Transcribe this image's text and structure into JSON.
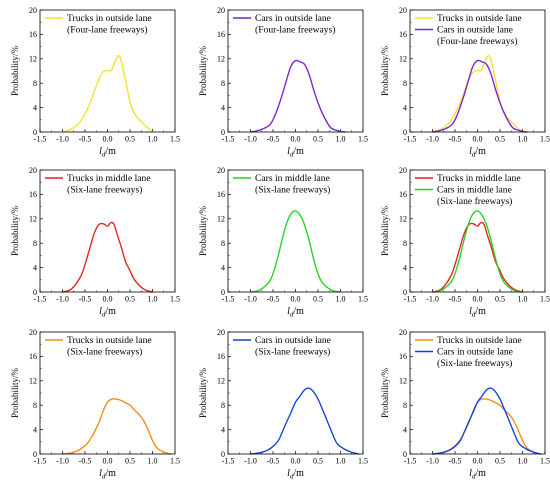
{
  "chart_data": [
    {
      "type": "line",
      "title": "",
      "xlabel_main": "l",
      "xlabel_sub": "d",
      "xlabel_unit": "/m",
      "ylabel": "Probability/%",
      "xlim": [
        -1.5,
        1.5
      ],
      "ylim": [
        0,
        20
      ],
      "xticks": [
        "-1.5",
        "-1.0",
        "-0.5",
        "0.0",
        "0.5",
        "1.0",
        "1.5"
      ],
      "yticks": [
        "0",
        "4",
        "8",
        "12",
        "16",
        "20"
      ],
      "legend": "top-left",
      "series": [
        {
          "name": "Trucks in outside lane",
          "color": "#f5e12c",
          "x": [
            -1.0,
            -0.8,
            -0.6,
            -0.4,
            -0.3,
            -0.2,
            -0.1,
            0.0,
            0.05,
            0.1,
            0.2,
            0.25,
            0.3,
            0.4,
            0.5,
            0.6,
            0.8,
            1.0
          ],
          "y": [
            0,
            0.5,
            1.8,
            4.5,
            6.5,
            8.5,
            9.8,
            10.1,
            10.0,
            10.3,
            12.1,
            12.5,
            11.8,
            8.5,
            5.0,
            3.0,
            1.3,
            0
          ]
        }
      ],
      "legend_lines": [
        "Trucks in outside lane",
        "(Four-lane freeways)"
      ]
    },
    {
      "type": "line",
      "title": "",
      "xlabel_main": "l",
      "xlabel_sub": "d",
      "xlabel_unit": "/m",
      "ylabel": "Probability/%",
      "xlim": [
        -1.5,
        1.5
      ],
      "ylim": [
        0,
        20
      ],
      "xticks": [
        "-1.5",
        "-1.0",
        "-0.5",
        "0.0",
        "0.5",
        "1.0",
        "1.5"
      ],
      "yticks": [
        "0",
        "4",
        "8",
        "12",
        "16",
        "20"
      ],
      "legend": "top-left",
      "series": [
        {
          "name": "Cars in outside lane",
          "color": "#7a1fd6",
          "x": [
            -1.0,
            -0.8,
            -0.6,
            -0.5,
            -0.4,
            -0.3,
            -0.2,
            -0.1,
            0.0,
            0.1,
            0.2,
            0.3,
            0.4,
            0.5,
            0.6,
            0.7,
            0.8,
            1.0,
            1.1
          ],
          "y": [
            0,
            0.3,
            1.0,
            2.0,
            3.8,
            6.0,
            8.5,
            10.8,
            11.7,
            11.5,
            11.1,
            9.5,
            7.0,
            4.8,
            3.0,
            1.6,
            0.6,
            0.1,
            0
          ]
        }
      ],
      "legend_lines": [
        "Cars in outside lane",
        "(Four-lane freeways)"
      ]
    },
    {
      "type": "line",
      "title": "",
      "xlabel_main": "l",
      "xlabel_sub": "d",
      "xlabel_unit": "/m",
      "ylabel": "Probability/%",
      "xlim": [
        -1.5,
        1.5
      ],
      "ylim": [
        0,
        20
      ],
      "xticks": [
        "-1.5",
        "-1.0",
        "-0.5",
        "0.0",
        "0.5",
        "1.0",
        "1.5"
      ],
      "yticks": [
        "0",
        "4",
        "8",
        "12",
        "16",
        "20"
      ],
      "legend": "top-left",
      "series": [
        {
          "name": "Trucks in outside lane",
          "color": "#f5e12c",
          "x": [
            -1.0,
            -0.8,
            -0.6,
            -0.4,
            -0.3,
            -0.2,
            -0.1,
            0.0,
            0.05,
            0.1,
            0.2,
            0.25,
            0.3,
            0.4,
            0.5,
            0.6,
            0.8,
            1.0
          ],
          "y": [
            0,
            0.5,
            1.8,
            4.5,
            6.5,
            8.5,
            9.8,
            10.1,
            10.0,
            10.3,
            12.1,
            12.5,
            11.8,
            8.5,
            5.0,
            3.0,
            1.3,
            0
          ]
        },
        {
          "name": "Cars in outside lane",
          "color": "#7a1fd6",
          "x": [
            -1.0,
            -0.8,
            -0.6,
            -0.5,
            -0.4,
            -0.3,
            -0.2,
            -0.1,
            0.0,
            0.1,
            0.2,
            0.3,
            0.4,
            0.5,
            0.6,
            0.7,
            0.8,
            1.0,
            1.1
          ],
          "y": [
            0,
            0.3,
            1.0,
            2.0,
            3.8,
            6.0,
            8.5,
            10.8,
            11.7,
            11.5,
            11.1,
            9.5,
            7.0,
            4.8,
            3.0,
            1.6,
            0.6,
            0.1,
            0
          ]
        }
      ],
      "legend_lines": [
        "Trucks in outside lane",
        "Cars in outside lane",
        "(Four-lane freeways)"
      ]
    },
    {
      "type": "line",
      "title": "",
      "xlabel_main": "l",
      "xlabel_sub": "d",
      "xlabel_unit": "/m",
      "ylabel": "Probability/%",
      "xlim": [
        -1.5,
        1.5
      ],
      "ylim": [
        0,
        20
      ],
      "xticks": [
        "-1.5",
        "-1.0",
        "-0.5",
        "0.0",
        "0.5",
        "1.0",
        "1.5"
      ],
      "yticks": [
        "0",
        "4",
        "8",
        "12",
        "16",
        "20"
      ],
      "legend": "top-left",
      "series": [
        {
          "name": "Trucks in middle lane",
          "color": "#e8201c",
          "x": [
            -1.0,
            -0.8,
            -0.6,
            -0.5,
            -0.4,
            -0.3,
            -0.2,
            -0.1,
            0.0,
            0.05,
            0.1,
            0.15,
            0.2,
            0.3,
            0.4,
            0.5,
            0.6,
            0.8,
            1.0
          ],
          "y": [
            0,
            0.5,
            2.5,
            4.5,
            7.0,
            9.5,
            11.0,
            11.2,
            10.8,
            11.2,
            11.4,
            11.0,
            9.8,
            7.5,
            5.0,
            3.5,
            2.0,
            0.5,
            0
          ]
        }
      ],
      "legend_lines": [
        "Trucks in middle lane",
        "(Six-lane freeways)"
      ]
    },
    {
      "type": "line",
      "title": "",
      "xlabel_main": "l",
      "xlabel_sub": "d",
      "xlabel_unit": "/m",
      "ylabel": "Probability/%",
      "xlim": [
        -1.5,
        1.5
      ],
      "ylim": [
        0,
        20
      ],
      "xticks": [
        "-1.5",
        "-1.0",
        "-0.5",
        "0.0",
        "0.5",
        "1.0",
        "1.5"
      ],
      "yticks": [
        "0",
        "4",
        "8",
        "12",
        "16",
        "20"
      ],
      "legend": "top-left",
      "series": [
        {
          "name": "Cars in middle lane",
          "color": "#1ed61e",
          "x": [
            -1.0,
            -0.8,
            -0.6,
            -0.5,
            -0.4,
            -0.3,
            -0.2,
            -0.1,
            0.0,
            0.1,
            0.2,
            0.3,
            0.4,
            0.5,
            0.6,
            0.8,
            1.0
          ],
          "y": [
            0,
            0.3,
            1.5,
            3.0,
            5.5,
            8.5,
            11.2,
            12.8,
            13.3,
            12.6,
            11.0,
            8.5,
            5.5,
            3.0,
            1.5,
            0.3,
            0
          ]
        }
      ],
      "legend_lines": [
        "Cars in middle lane",
        "(Six-lane freeways)"
      ]
    },
    {
      "type": "line",
      "title": "",
      "xlabel_main": "l",
      "xlabel_sub": "d",
      "xlabel_unit": "/m",
      "ylabel": "Probability/%",
      "xlim": [
        -1.5,
        1.5
      ],
      "ylim": [
        0,
        20
      ],
      "xticks": [
        "-1.5",
        "-1.0",
        "-0.5",
        "0.0",
        "0.5",
        "1.0",
        "1.5"
      ],
      "yticks": [
        "0",
        "4",
        "8",
        "12",
        "16",
        "20"
      ],
      "legend": "top-left",
      "series": [
        {
          "name": "Trucks in middle lane",
          "color": "#e8201c",
          "x": [
            -1.0,
            -0.8,
            -0.6,
            -0.5,
            -0.4,
            -0.3,
            -0.2,
            -0.1,
            0.0,
            0.05,
            0.1,
            0.15,
            0.2,
            0.3,
            0.4,
            0.5,
            0.6,
            0.8,
            1.0
          ],
          "y": [
            0,
            0.5,
            2.5,
            4.5,
            7.0,
            9.5,
            11.0,
            11.2,
            10.8,
            11.2,
            11.4,
            11.0,
            9.8,
            7.5,
            5.0,
            3.5,
            2.0,
            0.5,
            0
          ]
        },
        {
          "name": "Cars in middle lane",
          "color": "#1ed61e",
          "x": [
            -1.0,
            -0.8,
            -0.6,
            -0.5,
            -0.4,
            -0.3,
            -0.2,
            -0.1,
            0.0,
            0.1,
            0.2,
            0.3,
            0.4,
            0.5,
            0.6,
            0.8,
            1.0
          ],
          "y": [
            0,
            0.3,
            1.5,
            3.0,
            5.5,
            8.5,
            11.2,
            12.8,
            13.3,
            12.6,
            11.0,
            8.5,
            5.5,
            3.0,
            1.5,
            0.3,
            0
          ]
        }
      ],
      "legend_lines": [
        "Trucks in middle lane",
        "Cars in middle lane",
        "(Six-lane freeways)"
      ]
    },
    {
      "type": "line",
      "title": "",
      "xlabel_main": "l",
      "xlabel_sub": "d",
      "xlabel_unit": "/m",
      "ylabel": "Probability/%",
      "xlim": [
        -1.5,
        1.5
      ],
      "ylim": [
        0,
        20
      ],
      "xticks": [
        "-1.5",
        "-1.0",
        "-0.5",
        "0.0",
        "0.5",
        "1.0",
        "1.5"
      ],
      "yticks": [
        "0",
        "4",
        "8",
        "12",
        "16",
        "20"
      ],
      "legend": "top-left",
      "series": [
        {
          "name": "Trucks in outside lane",
          "color": "#f28c0f",
          "x": [
            -1.0,
            -0.8,
            -0.6,
            -0.4,
            -0.2,
            -0.1,
            0.0,
            0.1,
            0.2,
            0.3,
            0.4,
            0.5,
            0.6,
            0.7,
            0.8,
            0.9,
            1.0,
            1.1,
            1.2,
            1.3,
            1.4
          ],
          "y": [
            0,
            0.2,
            0.8,
            2.2,
            5.0,
            7.0,
            8.5,
            9.0,
            9.0,
            8.8,
            8.4,
            8.0,
            7.2,
            6.5,
            5.5,
            4.0,
            2.2,
            1.0,
            0.5,
            0.2,
            0
          ]
        }
      ],
      "legend_lines": [
        "Trucks in outside lane",
        "(Six-lane freeways)"
      ]
    },
    {
      "type": "line",
      "title": "",
      "xlabel_main": "l",
      "xlabel_sub": "d",
      "xlabel_unit": "/m",
      "ylabel": "Probability/%",
      "xlim": [
        -1.5,
        1.5
      ],
      "ylim": [
        0,
        20
      ],
      "xticks": [
        "-1.5",
        "-1.0",
        "-0.5",
        "0.0",
        "0.5",
        "1.0",
        "1.5"
      ],
      "yticks": [
        "0",
        "4",
        "8",
        "12",
        "16",
        "20"
      ],
      "legend": "top-left",
      "series": [
        {
          "name": "Cars in outside lane",
          "color": "#1040e0",
          "x": [
            -1.0,
            -0.8,
            -0.6,
            -0.4,
            -0.3,
            -0.2,
            -0.1,
            0.0,
            0.1,
            0.2,
            0.3,
            0.4,
            0.5,
            0.6,
            0.7,
            0.8,
            0.9,
            1.0,
            1.2,
            1.4
          ],
          "y": [
            0,
            0.2,
            0.7,
            2.0,
            3.5,
            5.2,
            6.8,
            8.5,
            9.5,
            10.5,
            10.8,
            10.2,
            9.0,
            7.3,
            5.5,
            3.7,
            2.0,
            1.2,
            0.4,
            0
          ]
        }
      ],
      "legend_lines": [
        "Cars in outside lane",
        "(Six-lane freeways)"
      ]
    },
    {
      "type": "line",
      "title": "",
      "xlabel_main": "l",
      "xlabel_sub": "d",
      "xlabel_unit": "/m",
      "ylabel": "Probability/%",
      "xlim": [
        -1.5,
        1.5
      ],
      "ylim": [
        0,
        20
      ],
      "xticks": [
        "-1.5",
        "-1.0",
        "-0.5",
        "0.0",
        "0.5",
        "1.0",
        "1.5"
      ],
      "yticks": [
        "0",
        "4",
        "8",
        "12",
        "16",
        "20"
      ],
      "legend": "top-left",
      "series": [
        {
          "name": "Trucks in outside lane",
          "color": "#f28c0f",
          "x": [
            -1.0,
            -0.8,
            -0.6,
            -0.4,
            -0.2,
            -0.1,
            0.0,
            0.1,
            0.2,
            0.3,
            0.4,
            0.5,
            0.6,
            0.7,
            0.8,
            0.9,
            1.0,
            1.1,
            1.2,
            1.3,
            1.4
          ],
          "y": [
            0,
            0.2,
            0.8,
            2.2,
            5.0,
            7.0,
            8.5,
            9.0,
            9.0,
            8.8,
            8.4,
            8.0,
            7.2,
            6.5,
            5.5,
            4.0,
            2.2,
            1.0,
            0.5,
            0.2,
            0
          ]
        },
        {
          "name": "Cars in outside lane",
          "color": "#1040e0",
          "x": [
            -1.0,
            -0.8,
            -0.6,
            -0.4,
            -0.3,
            -0.2,
            -0.1,
            0.0,
            0.1,
            0.2,
            0.3,
            0.4,
            0.5,
            0.6,
            0.7,
            0.8,
            0.9,
            1.0,
            1.2,
            1.4
          ],
          "y": [
            0,
            0.2,
            0.7,
            2.0,
            3.5,
            5.2,
            6.8,
            8.5,
            9.5,
            10.5,
            10.8,
            10.2,
            9.0,
            7.3,
            5.5,
            3.7,
            2.0,
            1.2,
            0.4,
            0
          ]
        }
      ],
      "legend_lines": [
        "Trucks in outside lane",
        "Cars in outside lane",
        "(Six-lane freeways)"
      ]
    }
  ]
}
